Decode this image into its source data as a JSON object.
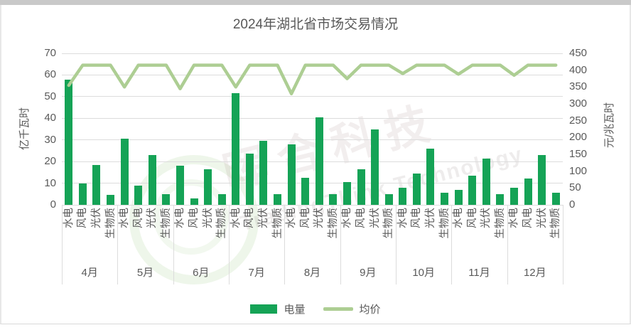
{
  "title": "2024年湖北省市场交易情况",
  "chart_data": {
    "type": "bar+line combo",
    "title": "2024年湖北省市场交易情况",
    "group_labels": [
      "4月",
      "5月",
      "6月",
      "7月",
      "8月",
      "9月",
      "10月",
      "11月",
      "12月"
    ],
    "categories_per_group": [
      "水电",
      "风电",
      "光伏",
      "生物质"
    ],
    "series": [
      {
        "name": "电量",
        "type": "bar",
        "axis": "left",
        "unit": "亿千瓦时",
        "color": "#15A356",
        "values": [
          [
            58,
            10,
            18.5,
            4.5
          ],
          [
            30.5,
            9,
            23,
            5
          ],
          [
            18,
            3,
            16.5,
            5
          ],
          [
            51.5,
            23.5,
            29.5,
            5
          ],
          [
            28,
            12.5,
            40.5,
            5
          ],
          [
            10.5,
            16.5,
            35,
            5
          ],
          [
            8,
            14.5,
            26,
            5.5
          ],
          [
            7,
            13.5,
            21.5,
            5
          ],
          [
            8,
            12,
            23,
            5.5
          ]
        ]
      },
      {
        "name": "均价",
        "type": "line",
        "axis": "right",
        "unit": "元/兆瓦时",
        "color": "#ADCE93",
        "values": [
          [
            355,
            415,
            415,
            415
          ],
          [
            350,
            415,
            415,
            415
          ],
          [
            345,
            415,
            415,
            415
          ],
          [
            350,
            415,
            415,
            415
          ],
          [
            330,
            415,
            415,
            415
          ],
          [
            375,
            415,
            415,
            415
          ],
          [
            390,
            415,
            415,
            415
          ],
          [
            388,
            415,
            415,
            415
          ],
          [
            385,
            415,
            415,
            415
          ]
        ]
      }
    ],
    "left_axis": {
      "label": "亿千瓦时",
      "min": 0,
      "max": 70,
      "step": 10
    },
    "right_axis": {
      "label": "元/兆瓦时",
      "min": 0,
      "max": 450,
      "step": 50
    },
    "grid": true,
    "legend_position": "bottom"
  },
  "colors": {
    "bar": "#15A356",
    "line": "#ADCE93",
    "grid": "#DCDCDC",
    "text": "#595959"
  },
  "watermark": {
    "chinese": "晖合科技",
    "english": "TradingThink Technology"
  }
}
